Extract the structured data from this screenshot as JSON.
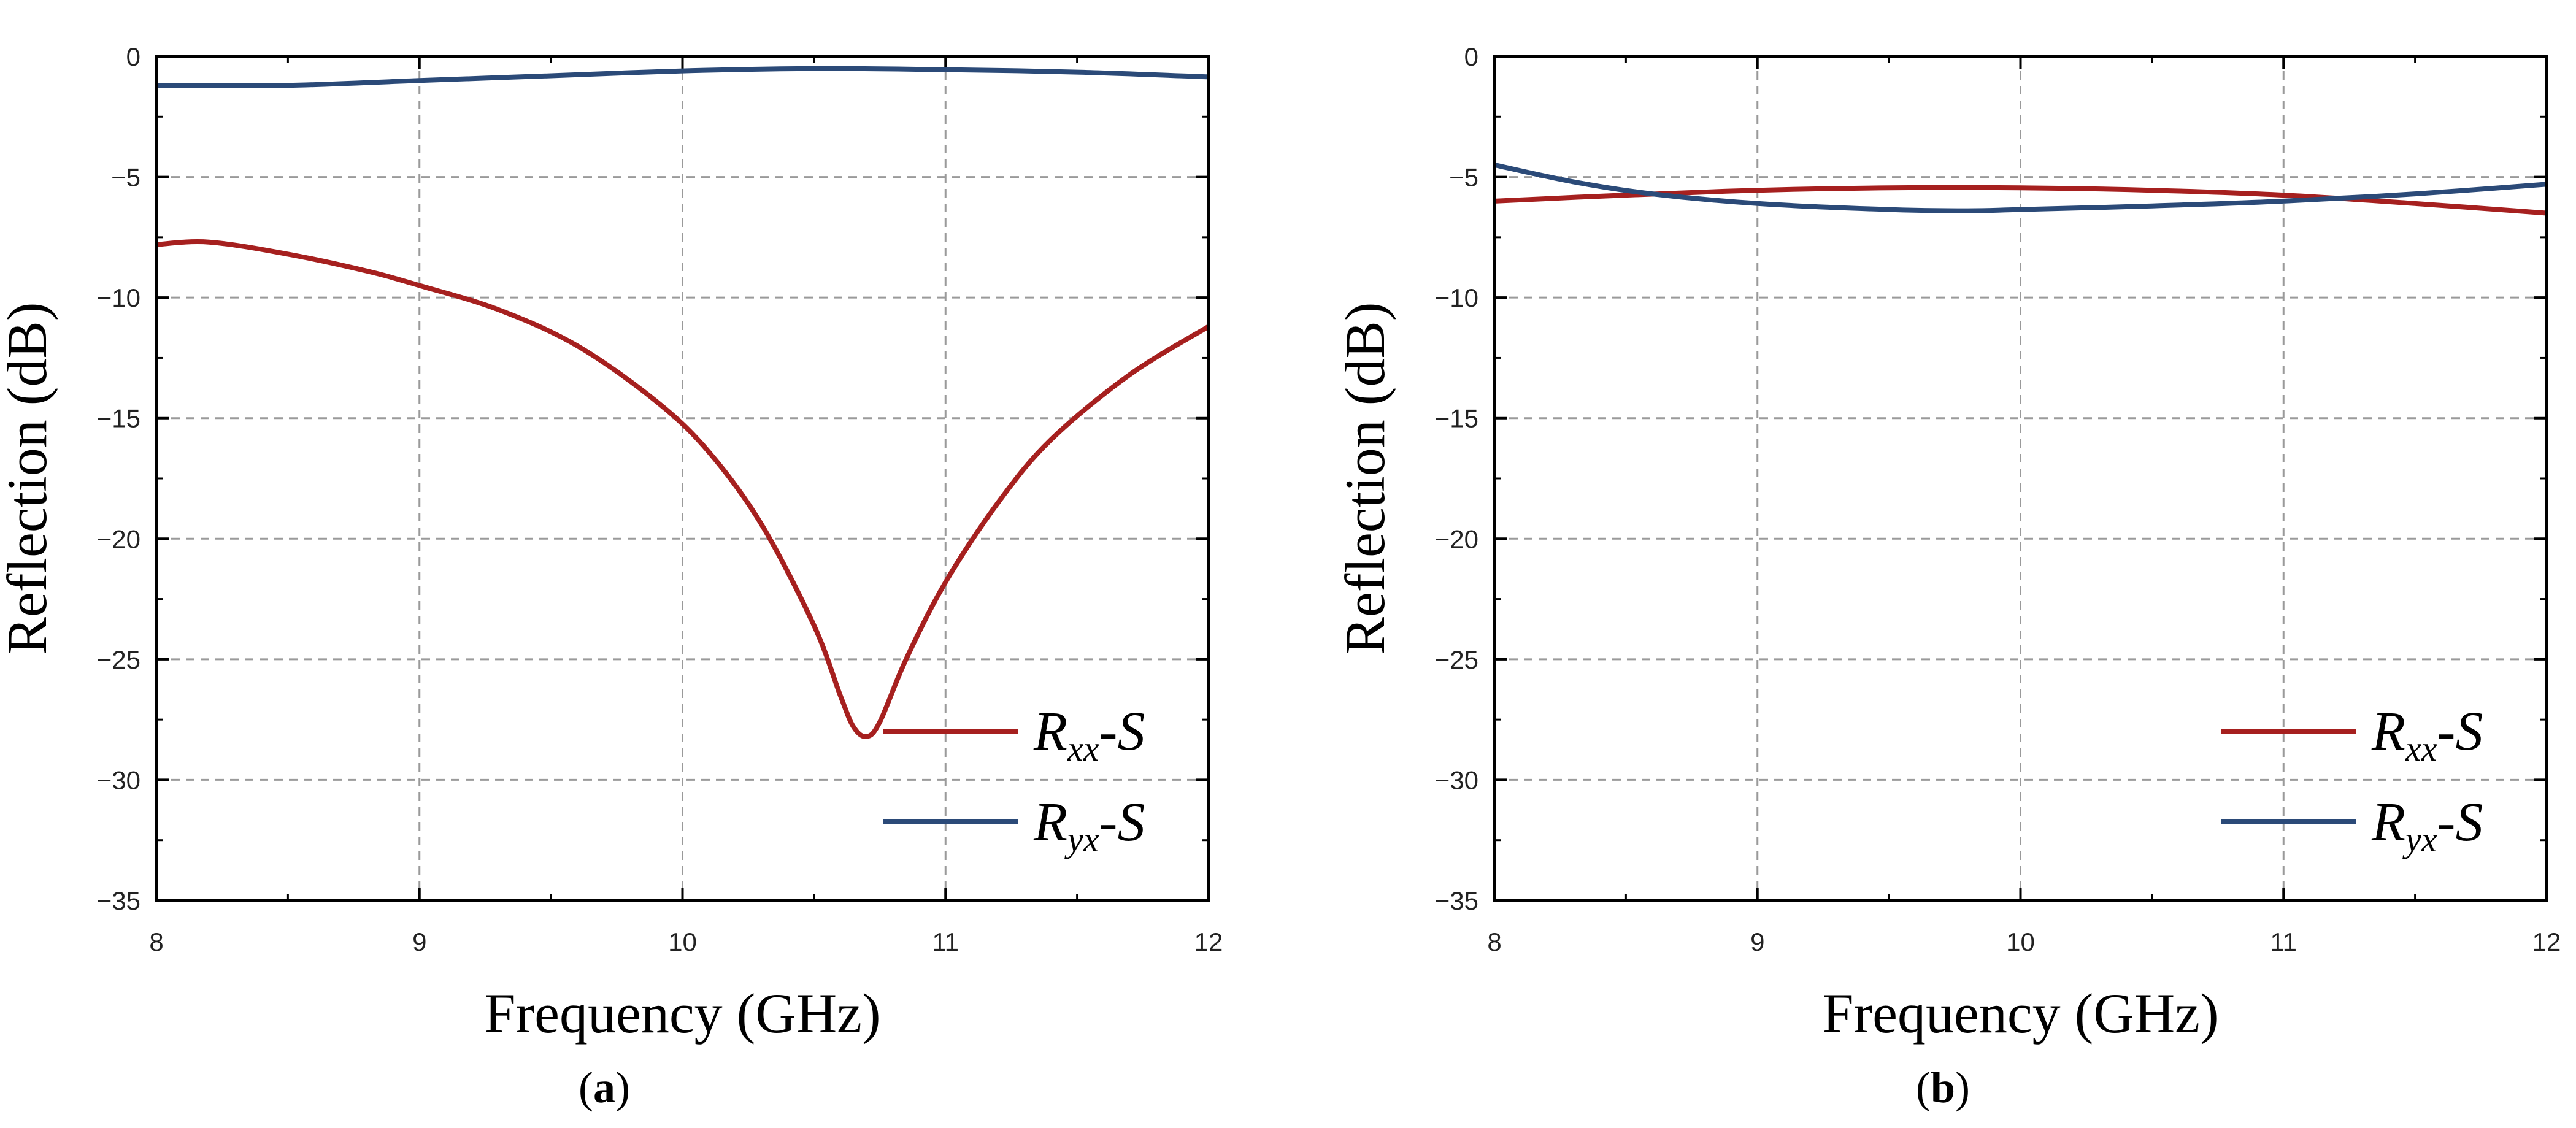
{
  "chart_data": [
    {
      "type": "line",
      "panel_label": "a",
      "xlabel": "Frequency (GHz)",
      "ylabel": "Reflection (dB)",
      "xlim": [
        8,
        12
      ],
      "ylim": [
        -35,
        0
      ],
      "xticks": [
        8,
        9,
        10,
        11,
        12
      ],
      "yticks": [
        0,
        -5,
        -10,
        -15,
        -20,
        -25,
        -30,
        -35
      ],
      "grid": true,
      "legend_position": "lower-right",
      "series": [
        {
          "name": "Rxx-S",
          "symbol": "R",
          "subscript": "xx",
          "suffix": "-S",
          "color": "#A6201F",
          "x": [
            8.0,
            8.2,
            8.5,
            8.8,
            9.0,
            9.3,
            9.6,
            9.9,
            10.1,
            10.3,
            10.5,
            10.6,
            10.65,
            10.7,
            10.75,
            10.85,
            11.0,
            11.2,
            11.4,
            11.7,
            12.0
          ],
          "y": [
            -7.8,
            -7.7,
            -8.2,
            -8.9,
            -9.5,
            -10.5,
            -12.0,
            -14.3,
            -16.4,
            -19.4,
            -23.6,
            -26.5,
            -27.8,
            -28.2,
            -27.6,
            -25.0,
            -21.8,
            -18.5,
            -15.9,
            -13.2,
            -11.2
          ]
        },
        {
          "name": "Ryx-S",
          "symbol": "R",
          "subscript": "yx",
          "suffix": "-S",
          "color": "#2B4A78",
          "x": [
            8.0,
            8.5,
            9.0,
            9.5,
            10.0,
            10.5,
            11.0,
            11.5,
            12.0
          ],
          "y": [
            -1.2,
            -1.2,
            -1.0,
            -0.8,
            -0.6,
            -0.5,
            -0.55,
            -0.65,
            -0.85
          ]
        }
      ]
    },
    {
      "type": "line",
      "panel_label": "b",
      "xlabel": "Frequency (GHz)",
      "ylabel": "Reflection (dB)",
      "xlim": [
        8,
        12
      ],
      "ylim": [
        -35,
        0
      ],
      "xticks": [
        8,
        9,
        10,
        11,
        12
      ],
      "yticks": [
        0,
        -5,
        -10,
        -15,
        -20,
        -25,
        -30,
        -35
      ],
      "grid": true,
      "legend_position": "lower-right",
      "series": [
        {
          "name": "Rxx-S",
          "symbol": "R",
          "subscript": "xx",
          "suffix": "-S",
          "color": "#A6201F",
          "x": [
            8.0,
            8.5,
            9.0,
            9.5,
            10.0,
            10.5,
            11.0,
            11.5,
            12.0
          ],
          "y": [
            -6.0,
            -5.75,
            -5.55,
            -5.45,
            -5.45,
            -5.55,
            -5.75,
            -6.1,
            -6.5
          ]
        },
        {
          "name": "Ryx-S",
          "symbol": "R",
          "subscript": "yx",
          "suffix": "-S",
          "color": "#2B4A78",
          "x": [
            8.0,
            8.3,
            8.6,
            9.0,
            9.5,
            9.8,
            10.0,
            10.5,
            11.0,
            11.5,
            12.0
          ],
          "y": [
            -4.5,
            -5.2,
            -5.7,
            -6.1,
            -6.35,
            -6.4,
            -6.35,
            -6.2,
            -6.0,
            -5.7,
            -5.3
          ]
        }
      ]
    }
  ]
}
